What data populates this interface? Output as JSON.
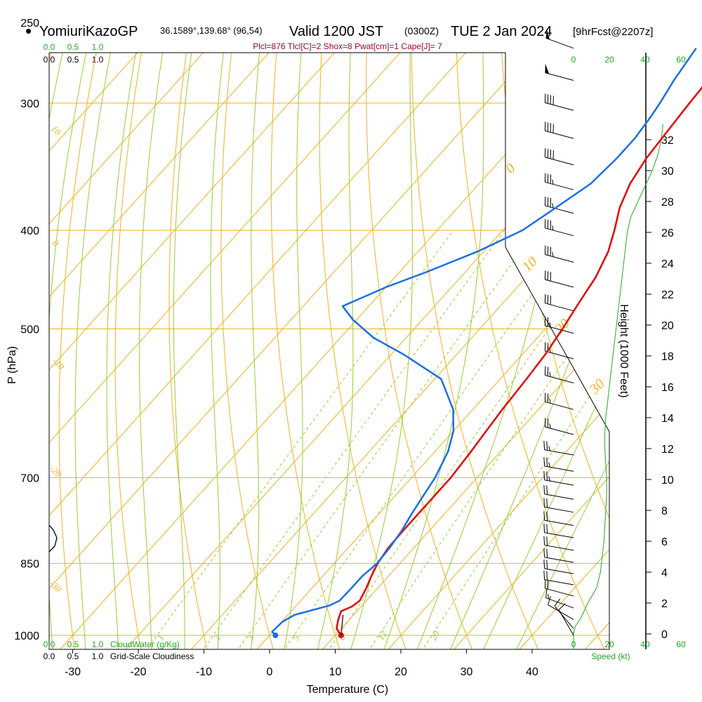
{
  "header": {
    "bullet": "•",
    "station": "YomiuriKazoGP",
    "coords": "36.1589°,139.68° (96,54)",
    "valid_prefix": "Valid 1200 JST",
    "valid_utc": "(0300Z)",
    "valid_date": "TUE 2 Jan 2024",
    "forecast": "[9hrFcst@2207z]"
  },
  "indices": "Plcl=876 Tlcl[C]=2 Shox=8 Pwat[cm]=1 Cape[J]= 7",
  "colors": {
    "temp": "#e60000",
    "dewpoint": "#1a6fe6",
    "isotherm": "#f0b020",
    "dry_adiabat": "#f0b020",
    "moist_adiabat": "#99cc33",
    "mixing_ratio": "#99cc33",
    "green_label": "#22aa22",
    "maroon_label": "#a0003c"
  },
  "top_scales": {
    "cloud_ticks": [
      "0.0",
      "0.5",
      "1.0"
    ],
    "cloudiness_ticks": [
      "0.0",
      "0.5",
      "1.0"
    ],
    "speed_ticks": [
      "0",
      "20",
      "40",
      "60"
    ]
  },
  "bottom_scales": {
    "cloud_ticks": [
      "0.0",
      "0.5",
      "1.0"
    ],
    "cloud_label": "CloudWater (g/Kg)",
    "cloudiness_ticks": [
      "0.0",
      "0.5",
      "1.0"
    ],
    "cloudiness_label": "Grid-Scale Cloudiness",
    "speed_ticks": [
      "0",
      "20",
      "40",
      "60"
    ],
    "speed_label": "Speed (kt)"
  },
  "chart_data": {
    "type": "line",
    "title": "",
    "xlabel": "Temperature (C)",
    "ylabel": "P (hPa)",
    "y2label": "Height (1000 Feet)",
    "xlim": [
      -30,
      40
    ],
    "ylim": [
      1000,
      250
    ],
    "yscale": "log",
    "x_ticks": [
      -30,
      -20,
      -10,
      0,
      10,
      20,
      30,
      40
    ],
    "y_ticks": [
      250,
      300,
      400,
      500,
      700,
      850,
      1000
    ],
    "height_ticks": [
      0,
      2,
      4,
      6,
      8,
      10,
      12,
      14,
      16,
      18,
      20,
      22,
      24,
      26,
      28,
      30,
      32
    ],
    "isotherm_labels": [
      "0",
      "10",
      "20",
      "30"
    ],
    "dry_adiabat_labels": [
      "10",
      "0",
      "-10",
      "-20",
      "-30"
    ],
    "mixing_ratio_labels": [
      "1",
      "2",
      "3",
      "5",
      "8",
      "12",
      "20"
    ],
    "series": [
      {
        "name": "",
        "role": "temperature",
        "points": [
          [
            10.9,
            1000
          ],
          [
            9.3,
            985
          ],
          [
            8.3,
            965
          ],
          [
            7.6,
            947
          ],
          [
            8.6,
            937
          ],
          [
            9.0,
            925
          ],
          [
            8.3,
            900
          ],
          [
            7.4,
            875
          ],
          [
            6.6,
            850
          ],
          [
            6.1,
            820
          ],
          [
            6.0,
            790
          ],
          [
            6.0,
            760
          ],
          [
            6.0,
            730
          ],
          [
            6.0,
            700
          ],
          [
            5.5,
            660
          ],
          [
            5.0,
            630
          ],
          [
            4.5,
            600
          ],
          [
            4.0,
            560
          ],
          [
            3.5,
            530
          ],
          [
            2.6,
            500
          ],
          [
            1.5,
            470
          ],
          [
            0.6,
            445
          ],
          [
            -1.0,
            420
          ],
          [
            -3.0,
            400
          ],
          [
            -5.3,
            380
          ],
          [
            -7.0,
            360
          ],
          [
            -8.0,
            340
          ],
          [
            -8.5,
            320
          ],
          [
            -9.0,
            300
          ],
          [
            -9.4,
            280
          ],
          [
            -9.5,
            265
          ]
        ]
      },
      {
        "name": "",
        "role": "dewpoint",
        "points": [
          [
            0.9,
            1000
          ],
          [
            -0.1,
            992
          ],
          [
            0.1,
            970
          ],
          [
            1.0,
            955
          ],
          [
            5.0,
            935
          ],
          [
            5.9,
            925
          ],
          [
            6.0,
            900
          ],
          [
            6.0,
            875
          ],
          [
            6.5,
            850
          ],
          [
            6.3,
            820
          ],
          [
            5.8,
            790
          ],
          [
            5.0,
            760
          ],
          [
            4.3,
            730
          ],
          [
            3.6,
            700
          ],
          [
            2.0,
            660
          ],
          [
            0.0,
            630
          ],
          [
            -3.0,
            600
          ],
          [
            -9.0,
            560
          ],
          [
            -18.0,
            530
          ],
          [
            -25.0,
            510
          ],
          [
            -30.5,
            490
          ],
          [
            -34.0,
            475
          ],
          [
            -30.0,
            455
          ],
          [
            -26.0,
            440
          ],
          [
            -21.0,
            420
          ],
          [
            -17.0,
            400
          ],
          [
            -15.0,
            380
          ],
          [
            -13.0,
            360
          ],
          [
            -12.5,
            340
          ],
          [
            -12.5,
            325
          ],
          [
            -13.0,
            310
          ],
          [
            -13.5,
            300
          ],
          [
            -14.5,
            285
          ],
          [
            -15.5,
            265
          ]
        ]
      }
    ],
    "surface": {
      "temperature": 10.9,
      "dewpoint": 0.9
    },
    "wind_barbs": [
      {
        "p": 265,
        "dir": 290,
        "kt": 50
      },
      {
        "p": 285,
        "dir": 285,
        "kt": 50
      },
      {
        "p": 305,
        "dir": 285,
        "kt": 40
      },
      {
        "p": 325,
        "dir": 285,
        "kt": 40
      },
      {
        "p": 345,
        "dir": 285,
        "kt": 40
      },
      {
        "p": 365,
        "dir": 285,
        "kt": 35
      },
      {
        "p": 385,
        "dir": 285,
        "kt": 35
      },
      {
        "p": 405,
        "dir": 285,
        "kt": 35
      },
      {
        "p": 430,
        "dir": 285,
        "kt": 35
      },
      {
        "p": 455,
        "dir": 285,
        "kt": 30
      },
      {
        "p": 480,
        "dir": 285,
        "kt": 30
      },
      {
        "p": 505,
        "dir": 285,
        "kt": 25
      },
      {
        "p": 535,
        "dir": 285,
        "kt": 25
      },
      {
        "p": 565,
        "dir": 285,
        "kt": 25
      },
      {
        "p": 600,
        "dir": 285,
        "kt": 25
      },
      {
        "p": 635,
        "dir": 285,
        "kt": 25
      },
      {
        "p": 665,
        "dir": 280,
        "kt": 25
      },
      {
        "p": 690,
        "dir": 280,
        "kt": 25
      },
      {
        "p": 712,
        "dir": 280,
        "kt": 25
      },
      {
        "p": 735,
        "dir": 280,
        "kt": 20
      },
      {
        "p": 757,
        "dir": 280,
        "kt": 20
      },
      {
        "p": 780,
        "dir": 280,
        "kt": 20
      },
      {
        "p": 802,
        "dir": 280,
        "kt": 20
      },
      {
        "p": 825,
        "dir": 280,
        "kt": 20
      },
      {
        "p": 848,
        "dir": 280,
        "kt": 20
      },
      {
        "p": 870,
        "dir": 280,
        "kt": 20
      },
      {
        "p": 892,
        "dir": 280,
        "kt": 20
      },
      {
        "p": 915,
        "dir": 285,
        "kt": 20
      },
      {
        "p": 940,
        "dir": 290,
        "kt": 15
      },
      {
        "p": 965,
        "dir": 300,
        "kt": 10
      },
      {
        "p": 985,
        "dir": 320,
        "kt": 10
      },
      {
        "p": 1000,
        "dir": 330,
        "kt": 10
      }
    ],
    "wind_speed_profile": [
      [
        0,
        0
      ],
      [
        0.5,
        1
      ],
      [
        1,
        4
      ],
      [
        2,
        8
      ],
      [
        3,
        13
      ],
      [
        4,
        15
      ],
      [
        5,
        16
      ],
      [
        6,
        17
      ],
      [
        7,
        17.5
      ],
      [
        8,
        18
      ],
      [
        9,
        18.5
      ],
      [
        10,
        18.5
      ],
      [
        11,
        18
      ],
      [
        12,
        17.5
      ],
      [
        13,
        17.5
      ],
      [
        14,
        18
      ],
      [
        15,
        19
      ],
      [
        16,
        20
      ],
      [
        17,
        21
      ],
      [
        18,
        22
      ],
      [
        19,
        23
      ],
      [
        20,
        24
      ],
      [
        21,
        25
      ],
      [
        22,
        26
      ],
      [
        23,
        27
      ],
      [
        24,
        28
      ],
      [
        25,
        29
      ],
      [
        26,
        30
      ],
      [
        27,
        32
      ],
      [
        28,
        36
      ],
      [
        29,
        40
      ],
      [
        30,
        44
      ],
      [
        31,
        47
      ],
      [
        32,
        49
      ],
      [
        33,
        50
      ]
    ],
    "grid": true
  }
}
